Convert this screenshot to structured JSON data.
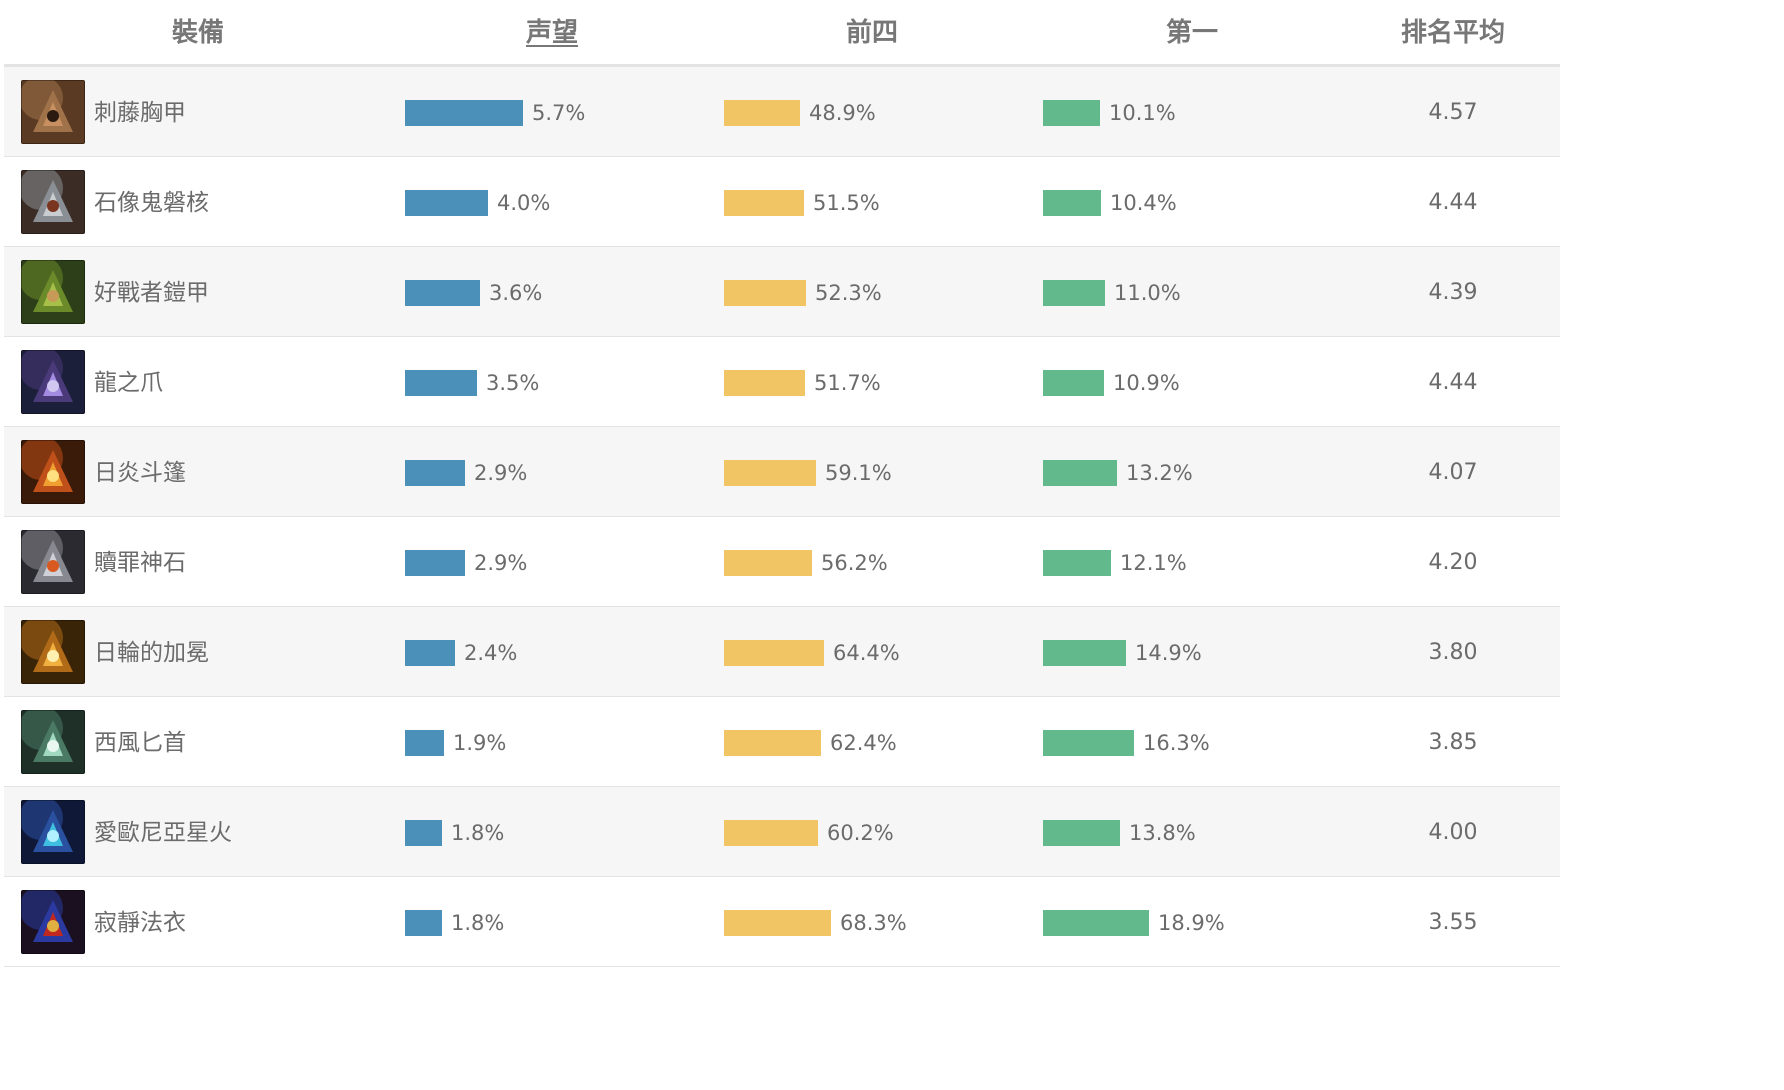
{
  "columns": {
    "item": "裝備",
    "prestige": "声望",
    "top4": "前四",
    "first": "第一",
    "avg_rank": "排名平均"
  },
  "colors": {
    "prestige_bar": "#4a90b8",
    "top4_bar": "#f2c564",
    "first_bar": "#62b98c",
    "row_alt_bg": "#f6f6f6"
  },
  "rows": [
    {
      "name": "刺藤胸甲",
      "icon": "thornmail-icon",
      "prestige": "5.7%",
      "top4": "48.9%",
      "first": "10.1%",
      "avg": "4.57"
    },
    {
      "name": "石像鬼磐核",
      "icon": "gargoyle-stoneplate-icon",
      "prestige": "4.0%",
      "top4": "51.5%",
      "first": "10.4%",
      "avg": "4.44"
    },
    {
      "name": "好戰者鎧甲",
      "icon": "titans-resolve-icon",
      "prestige": "3.6%",
      "top4": "52.3%",
      "first": "11.0%",
      "avg": "4.39"
    },
    {
      "name": "龍之爪",
      "icon": "dragons-claw-icon",
      "prestige": "3.5%",
      "top4": "51.7%",
      "first": "10.9%",
      "avg": "4.44"
    },
    {
      "name": "日炎斗篷",
      "icon": "sunfire-cape-icon",
      "prestige": "2.9%",
      "top4": "59.1%",
      "first": "13.2%",
      "avg": "4.07"
    },
    {
      "name": "贖罪神石",
      "icon": "redemption-icon",
      "prestige": "2.9%",
      "top4": "56.2%",
      "first": "12.1%",
      "avg": "4.20"
    },
    {
      "name": "日輪的加冕",
      "icon": "locket-of-the-solari-icon",
      "prestige": "2.4%",
      "top4": "64.4%",
      "first": "14.9%",
      "avg": "3.80"
    },
    {
      "name": "西風匕首",
      "icon": "zephyr-icon",
      "prestige": "1.9%",
      "top4": "62.4%",
      "first": "16.3%",
      "avg": "3.85"
    },
    {
      "name": "愛歐尼亞星火",
      "icon": "ionic-spark-icon",
      "prestige": "1.8%",
      "top4": "60.2%",
      "first": "13.8%",
      "avg": "4.00"
    },
    {
      "name": "寂靜法衣",
      "icon": "shroud-of-stillness-icon",
      "prestige": "1.8%",
      "top4": "68.3%",
      "first": "18.9%",
      "avg": "3.55"
    }
  ]
}
